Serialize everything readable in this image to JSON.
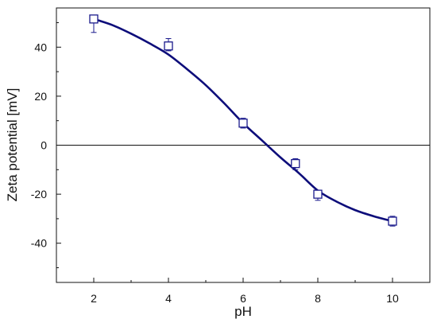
{
  "chart_data": {
    "type": "scatter",
    "title": "",
    "xlabel": "pH",
    "ylabel": "Zeta potential [mV]",
    "xlim": [
      1,
      11
    ],
    "ylim": [
      -56,
      56
    ],
    "xticks": [
      2,
      4,
      6,
      8,
      10
    ],
    "xtick_labels": [
      "2",
      "4",
      "6",
      "8",
      "10"
    ],
    "yticks": [
      -40,
      -20,
      0,
      20,
      40
    ],
    "ytick_labels": [
      "-40",
      "-20",
      "0",
      "20",
      "40"
    ],
    "zero_line": true,
    "grid": false,
    "series": [
      {
        "marker": "open-square",
        "color": "#1a1a8c",
        "x": [
          2,
          4,
          6,
          7.4,
          8,
          10
        ],
        "y": [
          51.5,
          40.5,
          9,
          -7.5,
          -20,
          -31
        ],
        "err_low": [
          46,
          38.5,
          7,
          -10,
          -22.5,
          -33
        ],
        "err_high": [
          53,
          43.5,
          11,
          -5.5,
          -18.5,
          -29
        ]
      }
    ],
    "fit_curve": {
      "color": "#0d0d7a",
      "x": [
        2,
        2.5,
        3,
        3.5,
        4,
        4.5,
        5,
        5.5,
        6,
        6.5,
        7,
        7.5,
        8,
        8.5,
        9,
        9.5,
        10
      ],
      "y": [
        51.5,
        49,
        45.5,
        41.5,
        37,
        31,
        24.5,
        17,
        9,
        2,
        -5,
        -11.5,
        -18.5,
        -23,
        -26.5,
        -29,
        -31
      ]
    }
  }
}
